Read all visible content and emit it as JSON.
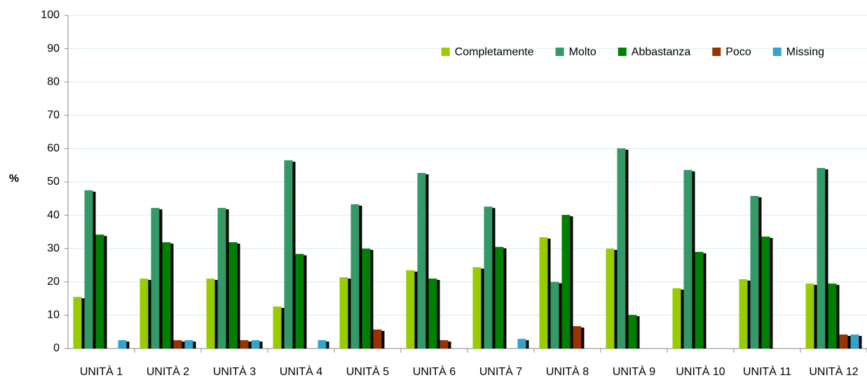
{
  "chart_data": {
    "type": "bar",
    "y_label": "%",
    "categories": [
      "UNITÀ 1",
      "UNITÀ 2",
      "UNITÀ 3",
      "UNITÀ 4",
      "UNITÀ 5",
      "UNITÀ 6",
      "UNITÀ 7",
      "UNITÀ 8",
      "UNITÀ 9",
      "UNITÀ 10",
      "UNITÀ 11",
      "UNITÀ 12"
    ],
    "series": [
      {
        "name": "Completamente",
        "color": "#99cc00",
        "values": [
          15.5,
          21,
          21,
          12.6,
          21.4,
          23.5,
          24.4,
          33.4,
          30,
          18.1,
          20.8,
          19.5
        ]
      },
      {
        "name": "Molto",
        "color": "#339966",
        "values": [
          47.5,
          42.2,
          42.2,
          56.5,
          43.3,
          52.7,
          42.6,
          20,
          60.1,
          53.6,
          45.8,
          54.2
        ]
      },
      {
        "name": "Abbastanza",
        "color": "#008000",
        "values": [
          34.2,
          31.9,
          31.9,
          28.4,
          30,
          21,
          30.5,
          40.1,
          10.1,
          29,
          33.6,
          19.5
        ]
      },
      {
        "name": "Poco",
        "color": "#993300",
        "values": [
          0,
          2.5,
          2.5,
          0,
          5.7,
          2.5,
          0,
          6.7,
          0,
          0,
          0,
          4.2
        ]
      },
      {
        "name": "Missing",
        "color": "#33a3c8",
        "values": [
          2.5,
          2.5,
          2.5,
          2.5,
          0,
          0,
          2.9,
          0,
          0,
          0,
          0,
          4.2
        ]
      }
    ],
    "ylim": [
      0,
      100
    ],
    "yticks": [
      0,
      10,
      20,
      30,
      40,
      50,
      60,
      70,
      80,
      90,
      100
    ],
    "grid": true,
    "legend": "top-right"
  }
}
